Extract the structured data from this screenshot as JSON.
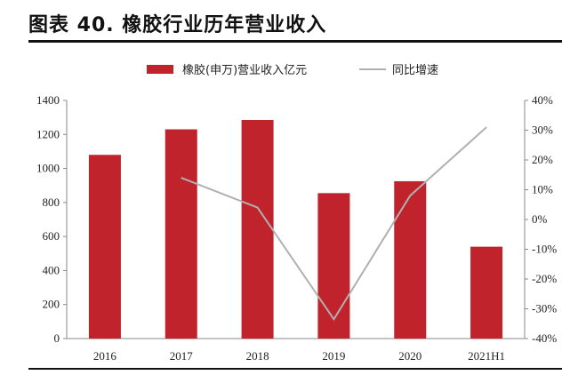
{
  "header": {
    "title": "图表 40. 橡胶行业历年营业收入"
  },
  "chart_data": {
    "type": "bar",
    "categories": [
      "2016",
      "2017",
      "2018",
      "2019",
      "2020",
      "2021H1"
    ],
    "series": [
      {
        "name": "橡胶(申万)营业收入亿元",
        "kind": "bar",
        "axis": "left",
        "color": "#c0232c",
        "values": [
          1080,
          1230,
          1285,
          855,
          925,
          540
        ]
      },
      {
        "name": "同比增速",
        "kind": "line",
        "axis": "right",
        "color": "#b0b0b0",
        "values": [
          null,
          14.0,
          4.0,
          -33.5,
          8.0,
          31.0
        ]
      }
    ],
    "yleft": {
      "min": 0,
      "max": 1400,
      "ticks": [
        "0",
        "200",
        "400",
        "600",
        "800",
        "1000",
        "1200",
        "1400"
      ]
    },
    "yright": {
      "min": -40,
      "max": 40,
      "ticks": [
        "-40%",
        "-30%",
        "-20%",
        "-10%",
        "0%",
        "10%",
        "20%",
        "30%",
        "40%"
      ]
    },
    "legend": "top-center",
    "grid": false
  }
}
